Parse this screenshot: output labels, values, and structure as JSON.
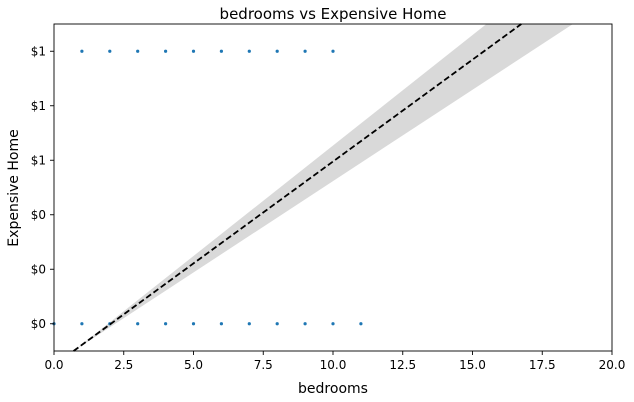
{
  "chart_data": {
    "type": "scatter",
    "title": "bedrooms vs Expensive Home",
    "xlabel": "bedrooms",
    "ylabel": "Expensive Home",
    "xlim": [
      0,
      20
    ],
    "ylim": [
      -0.1,
      1.1
    ],
    "grid": false,
    "x_ticks": [
      {
        "value": 0,
        "label": "0.0"
      },
      {
        "value": 2.5,
        "label": "2.5"
      },
      {
        "value": 5,
        "label": "5.0"
      },
      {
        "value": 7.5,
        "label": "7.5"
      },
      {
        "value": 10,
        "label": "10.0"
      },
      {
        "value": 12.5,
        "label": "12.5"
      },
      {
        "value": 15,
        "label": "15.0"
      },
      {
        "value": 17.5,
        "label": "17.5"
      },
      {
        "value": 20,
        "label": "20.0"
      }
    ],
    "y_ticks": [
      {
        "value": 0.0,
        "label": "$0"
      },
      {
        "value": 0.2,
        "label": "$0"
      },
      {
        "value": 0.4,
        "label": "$0"
      },
      {
        "value": 0.6,
        "label": "$1"
      },
      {
        "value": 0.8,
        "label": "$1"
      },
      {
        "value": 1.0,
        "label": "$1"
      }
    ],
    "points": [
      {
        "x": 0,
        "y": 0
      },
      {
        "x": 1,
        "y": 0
      },
      {
        "x": 2,
        "y": 0
      },
      {
        "x": 3,
        "y": 0
      },
      {
        "x": 4,
        "y": 0
      },
      {
        "x": 5,
        "y": 0
      },
      {
        "x": 6,
        "y": 0
      },
      {
        "x": 7,
        "y": 0
      },
      {
        "x": 8,
        "y": 0
      },
      {
        "x": 9,
        "y": 0
      },
      {
        "x": 10,
        "y": 0
      },
      {
        "x": 11,
        "y": 0
      },
      {
        "x": 1,
        "y": 1
      },
      {
        "x": 2,
        "y": 1
      },
      {
        "x": 3,
        "y": 1
      },
      {
        "x": 4,
        "y": 1
      },
      {
        "x": 5,
        "y": 1
      },
      {
        "x": 6,
        "y": 1
      },
      {
        "x": 7,
        "y": 1
      },
      {
        "x": 8,
        "y": 1
      },
      {
        "x": 9,
        "y": 1
      },
      {
        "x": 10,
        "y": 1
      }
    ],
    "regression": {
      "x": [
        0.7,
        16.75
      ],
      "y": [
        -0.1,
        1.1
      ],
      "ci_upper_end": {
        "x": 18.6,
        "y": 1.1
      },
      "ci_lower_end": {
        "x": 15.5,
        "y": 1.1
      }
    },
    "colors": {
      "points": "#1f77b4",
      "regression_line": "#000000",
      "ci_band": "#d9d9d9"
    }
  }
}
